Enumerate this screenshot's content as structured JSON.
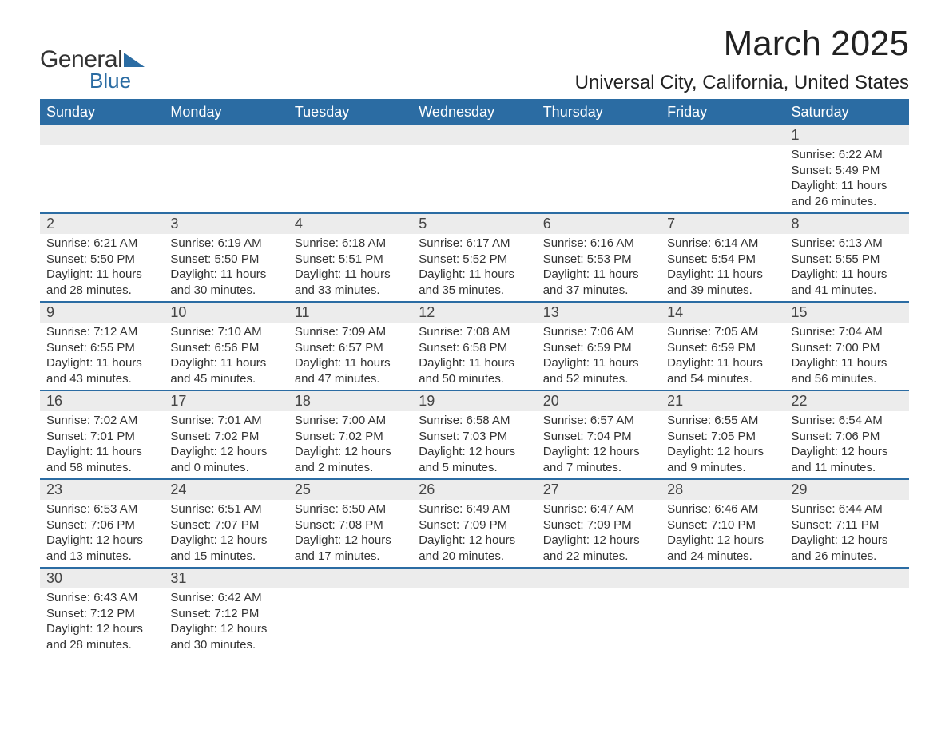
{
  "brand": {
    "general": "General",
    "blue": "Blue",
    "brand_color": "#2b6ca3"
  },
  "title": {
    "month": "March 2025",
    "location": "Universal City, California, United States"
  },
  "style": {
    "header_bg": "#2b6ca3",
    "header_text": "#ffffff",
    "daynum_bg": "#ececec",
    "row_border": "#2b6ca3",
    "body_bg": "#ffffff",
    "text_color": "#333333",
    "month_fontsize": 44,
    "location_fontsize": 24,
    "dayheader_fontsize": 18,
    "daynum_fontsize": 18,
    "detail_fontsize": 15
  },
  "weekdays": [
    "Sunday",
    "Monday",
    "Tuesday",
    "Wednesday",
    "Thursday",
    "Friday",
    "Saturday"
  ],
  "weeks": [
    [
      null,
      null,
      null,
      null,
      null,
      null,
      {
        "day": "1",
        "sunrise": "Sunrise: 6:22 AM",
        "sunset": "Sunset: 5:49 PM",
        "daylight1": "Daylight: 11 hours",
        "daylight2": "and 26 minutes."
      }
    ],
    [
      {
        "day": "2",
        "sunrise": "Sunrise: 6:21 AM",
        "sunset": "Sunset: 5:50 PM",
        "daylight1": "Daylight: 11 hours",
        "daylight2": "and 28 minutes."
      },
      {
        "day": "3",
        "sunrise": "Sunrise: 6:19 AM",
        "sunset": "Sunset: 5:50 PM",
        "daylight1": "Daylight: 11 hours",
        "daylight2": "and 30 minutes."
      },
      {
        "day": "4",
        "sunrise": "Sunrise: 6:18 AM",
        "sunset": "Sunset: 5:51 PM",
        "daylight1": "Daylight: 11 hours",
        "daylight2": "and 33 minutes."
      },
      {
        "day": "5",
        "sunrise": "Sunrise: 6:17 AM",
        "sunset": "Sunset: 5:52 PM",
        "daylight1": "Daylight: 11 hours",
        "daylight2": "and 35 minutes."
      },
      {
        "day": "6",
        "sunrise": "Sunrise: 6:16 AM",
        "sunset": "Sunset: 5:53 PM",
        "daylight1": "Daylight: 11 hours",
        "daylight2": "and 37 minutes."
      },
      {
        "day": "7",
        "sunrise": "Sunrise: 6:14 AM",
        "sunset": "Sunset: 5:54 PM",
        "daylight1": "Daylight: 11 hours",
        "daylight2": "and 39 minutes."
      },
      {
        "day": "8",
        "sunrise": "Sunrise: 6:13 AM",
        "sunset": "Sunset: 5:55 PM",
        "daylight1": "Daylight: 11 hours",
        "daylight2": "and 41 minutes."
      }
    ],
    [
      {
        "day": "9",
        "sunrise": "Sunrise: 7:12 AM",
        "sunset": "Sunset: 6:55 PM",
        "daylight1": "Daylight: 11 hours",
        "daylight2": "and 43 minutes."
      },
      {
        "day": "10",
        "sunrise": "Sunrise: 7:10 AM",
        "sunset": "Sunset: 6:56 PM",
        "daylight1": "Daylight: 11 hours",
        "daylight2": "and 45 minutes."
      },
      {
        "day": "11",
        "sunrise": "Sunrise: 7:09 AM",
        "sunset": "Sunset: 6:57 PM",
        "daylight1": "Daylight: 11 hours",
        "daylight2": "and 47 minutes."
      },
      {
        "day": "12",
        "sunrise": "Sunrise: 7:08 AM",
        "sunset": "Sunset: 6:58 PM",
        "daylight1": "Daylight: 11 hours",
        "daylight2": "and 50 minutes."
      },
      {
        "day": "13",
        "sunrise": "Sunrise: 7:06 AM",
        "sunset": "Sunset: 6:59 PM",
        "daylight1": "Daylight: 11 hours",
        "daylight2": "and 52 minutes."
      },
      {
        "day": "14",
        "sunrise": "Sunrise: 7:05 AM",
        "sunset": "Sunset: 6:59 PM",
        "daylight1": "Daylight: 11 hours",
        "daylight2": "and 54 minutes."
      },
      {
        "day": "15",
        "sunrise": "Sunrise: 7:04 AM",
        "sunset": "Sunset: 7:00 PM",
        "daylight1": "Daylight: 11 hours",
        "daylight2": "and 56 minutes."
      }
    ],
    [
      {
        "day": "16",
        "sunrise": "Sunrise: 7:02 AM",
        "sunset": "Sunset: 7:01 PM",
        "daylight1": "Daylight: 11 hours",
        "daylight2": "and 58 minutes."
      },
      {
        "day": "17",
        "sunrise": "Sunrise: 7:01 AM",
        "sunset": "Sunset: 7:02 PM",
        "daylight1": "Daylight: 12 hours",
        "daylight2": "and 0 minutes."
      },
      {
        "day": "18",
        "sunrise": "Sunrise: 7:00 AM",
        "sunset": "Sunset: 7:02 PM",
        "daylight1": "Daylight: 12 hours",
        "daylight2": "and 2 minutes."
      },
      {
        "day": "19",
        "sunrise": "Sunrise: 6:58 AM",
        "sunset": "Sunset: 7:03 PM",
        "daylight1": "Daylight: 12 hours",
        "daylight2": "and 5 minutes."
      },
      {
        "day": "20",
        "sunrise": "Sunrise: 6:57 AM",
        "sunset": "Sunset: 7:04 PM",
        "daylight1": "Daylight: 12 hours",
        "daylight2": "and 7 minutes."
      },
      {
        "day": "21",
        "sunrise": "Sunrise: 6:55 AM",
        "sunset": "Sunset: 7:05 PM",
        "daylight1": "Daylight: 12 hours",
        "daylight2": "and 9 minutes."
      },
      {
        "day": "22",
        "sunrise": "Sunrise: 6:54 AM",
        "sunset": "Sunset: 7:06 PM",
        "daylight1": "Daylight: 12 hours",
        "daylight2": "and 11 minutes."
      }
    ],
    [
      {
        "day": "23",
        "sunrise": "Sunrise: 6:53 AM",
        "sunset": "Sunset: 7:06 PM",
        "daylight1": "Daylight: 12 hours",
        "daylight2": "and 13 minutes."
      },
      {
        "day": "24",
        "sunrise": "Sunrise: 6:51 AM",
        "sunset": "Sunset: 7:07 PM",
        "daylight1": "Daylight: 12 hours",
        "daylight2": "and 15 minutes."
      },
      {
        "day": "25",
        "sunrise": "Sunrise: 6:50 AM",
        "sunset": "Sunset: 7:08 PM",
        "daylight1": "Daylight: 12 hours",
        "daylight2": "and 17 minutes."
      },
      {
        "day": "26",
        "sunrise": "Sunrise: 6:49 AM",
        "sunset": "Sunset: 7:09 PM",
        "daylight1": "Daylight: 12 hours",
        "daylight2": "and 20 minutes."
      },
      {
        "day": "27",
        "sunrise": "Sunrise: 6:47 AM",
        "sunset": "Sunset: 7:09 PM",
        "daylight1": "Daylight: 12 hours",
        "daylight2": "and 22 minutes."
      },
      {
        "day": "28",
        "sunrise": "Sunrise: 6:46 AM",
        "sunset": "Sunset: 7:10 PM",
        "daylight1": "Daylight: 12 hours",
        "daylight2": "and 24 minutes."
      },
      {
        "day": "29",
        "sunrise": "Sunrise: 6:44 AM",
        "sunset": "Sunset: 7:11 PM",
        "daylight1": "Daylight: 12 hours",
        "daylight2": "and 26 minutes."
      }
    ],
    [
      {
        "day": "30",
        "sunrise": "Sunrise: 6:43 AM",
        "sunset": "Sunset: 7:12 PM",
        "daylight1": "Daylight: 12 hours",
        "daylight2": "and 28 minutes."
      },
      {
        "day": "31",
        "sunrise": "Sunrise: 6:42 AM",
        "sunset": "Sunset: 7:12 PM",
        "daylight1": "Daylight: 12 hours",
        "daylight2": "and 30 minutes."
      },
      null,
      null,
      null,
      null,
      null
    ]
  ]
}
